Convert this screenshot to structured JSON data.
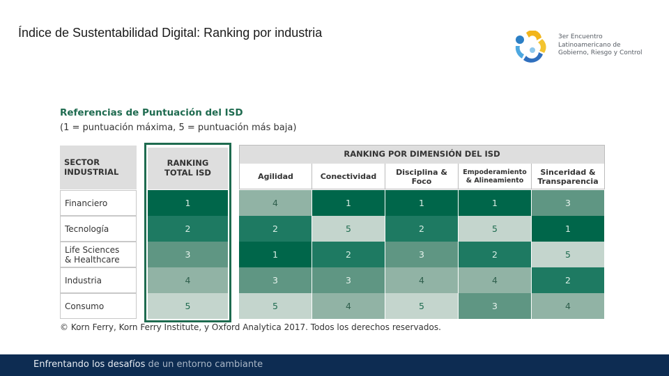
{
  "page": {
    "title": "Índice de Sustentabilidad Digital: Ranking por industria"
  },
  "logo": {
    "lines": [
      "3er Encuentro",
      "Latinoamericano de",
      "Gobierno, Riesgo y Control"
    ]
  },
  "references": {
    "title": "Referencias de Puntuación del ISD",
    "subtitle": "(1 = puntuación máxima, 5 = puntuación más baja)"
  },
  "table": {
    "sector_header": [
      "SECTOR",
      "INDUSTRIAL"
    ],
    "total_header": [
      "RANKING",
      "TOTAL ISD"
    ],
    "dimension_header": "RANKING POR DIMENSIÓN DEL ISD",
    "dimensions": [
      [
        "Agilidad"
      ],
      [
        "Conectividad"
      ],
      [
        "Disciplina &",
        "Foco"
      ],
      [
        "Empoderamiento",
        "& Alineamiento"
      ],
      [
        "Sinceridad &",
        "Transparencia"
      ]
    ],
    "rows": [
      {
        "sector": "Financiero",
        "total": 1,
        "dims": [
          4,
          1,
          1,
          1,
          3
        ]
      },
      {
        "sector": "Tecnología",
        "total": 2,
        "dims": [
          2,
          5,
          2,
          5,
          1
        ]
      },
      {
        "sector": "Life Sciences\n& Healthcare",
        "total": 3,
        "dims": [
          1,
          2,
          3,
          2,
          5
        ]
      },
      {
        "sector": "Industria",
        "total": 4,
        "dims": [
          3,
          3,
          4,
          4,
          2
        ]
      },
      {
        "sector": "Consumo",
        "total": 5,
        "dims": [
          5,
          4,
          5,
          3,
          4
        ]
      }
    ],
    "score_colors": {
      "1": "#00664a",
      "2": "#1e7a62",
      "3": "#5f9683",
      "4": "#91b3a5",
      "5": "#c4d5cd"
    },
    "score_text_colors": {
      "1": "#d9eee5",
      "2": "#d9eee5",
      "3": "#e6f2ec",
      "4": "#2f5f4d",
      "5": "#1e6b4f"
    }
  },
  "copyright": "© Korn Ferry, Korn Ferry Institute, y Oxford Analytica 2017. Todos los derechos reservados.",
  "footer": {
    "bold": "Enfrentando los desafíos",
    "light": "de un entorno cambiante"
  }
}
